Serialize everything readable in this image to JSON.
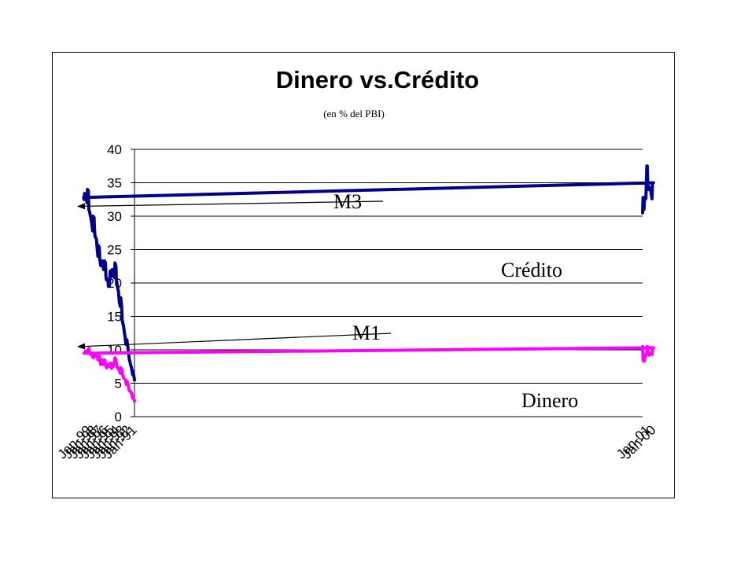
{
  "chart_data": {
    "type": "line",
    "title": "Dinero vs.Crédito",
    "subtitle": "(en % del PBI)",
    "xlabel": "",
    "ylabel": "",
    "ylim": [
      0,
      40
    ],
    "yticks": [
      0,
      5,
      10,
      15,
      20,
      25,
      30,
      35,
      40
    ],
    "xlim": [
      "Jan-91",
      "Dec-01"
    ],
    "xtick_labels": [
      "Jan-91",
      "Jan-92",
      "Jan-93",
      "Jan-94",
      "Jan-95",
      "Jan-96",
      "Jan-97",
      "Jan-98",
      "Jan-99",
      "Jan-00",
      "Jan-01"
    ],
    "grid": true,
    "legend": "none",
    "series": [
      {
        "name": "M3",
        "color": "#00008b",
        "points": [
          [
            "Jan-91",
            5.5
          ],
          [
            "Apr-91",
            6.8
          ],
          [
            "May-91",
            6.3
          ],
          [
            "Jul-91",
            7.2
          ],
          [
            "Oct-91",
            8.0
          ],
          [
            "Dec-91",
            8.6
          ],
          [
            "Mar-92",
            10.5
          ],
          [
            "May-92",
            11.5
          ],
          [
            "Jul-92",
            10.8
          ],
          [
            "Sep-92",
            12.0
          ],
          [
            "Dec-92",
            13.5
          ],
          [
            "Mar-93",
            14.5
          ],
          [
            "Apr-93",
            16.5
          ],
          [
            "Jun-93",
            17.8
          ],
          [
            "Jul-93",
            16.5
          ],
          [
            "Sep-93",
            17.2
          ],
          [
            "Nov-93",
            18.8
          ],
          [
            "Jan-94",
            19.5
          ],
          [
            "Mar-94",
            20.5
          ],
          [
            "Apr-94",
            22.5
          ],
          [
            "Jun-94",
            23.0
          ],
          [
            "Jul-94",
            20.8
          ],
          [
            "Sep-94",
            21.8
          ],
          [
            "Nov-94",
            21.6
          ],
          [
            "Dec-94",
            22.0
          ],
          [
            "Jan-95",
            21.0
          ],
          [
            "Apr-95",
            21.8
          ],
          [
            "May-95",
            20.5
          ],
          [
            "Jun-95",
            19.5
          ],
          [
            "Aug-95",
            19.5
          ],
          [
            "Sep-95",
            20.5
          ],
          [
            "Dec-95",
            20.5
          ],
          [
            "Jan-96",
            21.0
          ],
          [
            "Feb-96",
            23.0
          ],
          [
            "Apr-96",
            23.3
          ],
          [
            "Jun-96",
            22.0
          ],
          [
            "Jul-96",
            22.5
          ],
          [
            "Sep-96",
            23.3
          ],
          [
            "Dec-96",
            22.6
          ],
          [
            "Feb-97",
            23.5
          ],
          [
            "Mar-97",
            25.3
          ],
          [
            "May-97",
            25.6
          ],
          [
            "Jun-97",
            24.0
          ],
          [
            "Aug-97",
            25.5
          ],
          [
            "Sep-97",
            26.5
          ],
          [
            "Dec-97",
            27.0
          ],
          [
            "Jan-98",
            28.0
          ],
          [
            "Feb-98",
            29.8
          ],
          [
            "Apr-98",
            30.0
          ],
          [
            "May-98",
            27.8
          ],
          [
            "Jul-98",
            29.0
          ],
          [
            "Sep-98",
            29.8
          ],
          [
            "Nov-98",
            30.5
          ],
          [
            "Jan-99",
            31.0
          ],
          [
            "Feb-99",
            33.8
          ],
          [
            "Apr-99",
            34.0
          ],
          [
            "May-99",
            32.0
          ],
          [
            "Jul-99",
            32.6
          ],
          [
            "Aug-99",
            33.3
          ],
          [
            "Oct-99",
            33.4
          ],
          [
            "Nov-99",
            32.5
          ],
          [
            "Dec-99",
            32.8
          ],
          [
            "Jan-00",
            35.0
          ],
          [
            "Mar-00",
            35.0
          ],
          [
            "Apr-00",
            32.6
          ],
          [
            "Jun-00",
            33.5
          ],
          [
            "Aug-00",
            34.3
          ],
          [
            "Oct-00",
            34.3
          ],
          [
            "Dec-00",
            34.0
          ],
          [
            "Jan-01",
            35.0
          ],
          [
            "Feb-01",
            37.5
          ],
          [
            "Mar-01",
            37.5
          ],
          [
            "May-01",
            32.6
          ],
          [
            "Jul-01",
            32.8
          ],
          [
            "Aug-01",
            32.3
          ],
          [
            "Sep-01",
            31.0
          ],
          [
            "Oct-01",
            31.5
          ],
          [
            "Nov-01",
            32.8
          ],
          [
            "Dec-01",
            30.5
          ]
        ]
      },
      {
        "name": "M1",
        "color": "#ff00ff",
        "points": [
          [
            "Jan-91",
            2.3
          ],
          [
            "Apr-91",
            3.0
          ],
          [
            "May-91",
            2.8
          ],
          [
            "Jul-91",
            3.5
          ],
          [
            "Oct-91",
            3.8
          ],
          [
            "Dec-91",
            3.9
          ],
          [
            "Mar-92",
            5.0
          ],
          [
            "May-92",
            5.3
          ],
          [
            "Jun-92",
            4.8
          ],
          [
            "Aug-92",
            5.5
          ],
          [
            "Dec-92",
            5.8
          ],
          [
            "Mar-93",
            6.5
          ],
          [
            "Apr-93",
            7.2
          ],
          [
            "Jun-93",
            7.3
          ],
          [
            "Jul-93",
            6.5
          ],
          [
            "Sep-93",
            7.0
          ],
          [
            "Dec-93",
            7.2
          ],
          [
            "Feb-94",
            7.5
          ],
          [
            "Apr-94",
            8.5
          ],
          [
            "Jun-94",
            8.8
          ],
          [
            "Jul-94",
            7.8
          ],
          [
            "Sep-94",
            8.0
          ],
          [
            "Oct-94",
            7.5
          ],
          [
            "Dec-94",
            7.8
          ],
          [
            "Jan-95",
            7.2
          ],
          [
            "Mar-95",
            8.0
          ],
          [
            "Apr-95",
            8.0
          ],
          [
            "Jun-95",
            7.5
          ],
          [
            "Oct-95",
            7.8
          ],
          [
            "Dec-95",
            7.3
          ],
          [
            "Feb-96",
            7.8
          ],
          [
            "Apr-96",
            8.5
          ],
          [
            "Jun-96",
            7.8
          ],
          [
            "Sep-96",
            8.5
          ],
          [
            "Nov-96",
            7.8
          ],
          [
            "Dec-96",
            7.8
          ],
          [
            "Mar-97",
            9.0
          ],
          [
            "May-97",
            9.2
          ],
          [
            "Jun-97",
            8.5
          ],
          [
            "Jul-97",
            9.0
          ],
          [
            "Dec-97",
            9.0
          ],
          [
            "Jan-98",
            9.5
          ],
          [
            "Mar-98",
            9.5
          ],
          [
            "Apr-98",
            8.8
          ],
          [
            "Jun-98",
            9.3
          ],
          [
            "Sep-98",
            9.3
          ],
          [
            "Dec-98",
            9.5
          ],
          [
            "Jan-99",
            10.2
          ],
          [
            "Mar-99",
            10.0
          ],
          [
            "Apr-99",
            9.5
          ],
          [
            "Jun-99",
            9.8
          ],
          [
            "Aug-99",
            9.8
          ],
          [
            "Oct-99",
            9.5
          ],
          [
            "Nov-99",
            9.5
          ],
          [
            "Jan-00",
            10.3
          ],
          [
            "Mar-00",
            10.0
          ],
          [
            "Apr-00",
            9.3
          ],
          [
            "Jun-00",
            9.5
          ],
          [
            "Aug-00",
            9.5
          ],
          [
            "Oct-00",
            9.2
          ],
          [
            "Nov-00",
            9.3
          ],
          [
            "Jan-01",
            10.0
          ],
          [
            "Feb-01",
            10.5
          ],
          [
            "Mar-01",
            9.5
          ],
          [
            "May-01",
            9.2
          ],
          [
            "Jul-01",
            8.8
          ],
          [
            "Aug-01",
            8.3
          ],
          [
            "Oct-01",
            8.3
          ],
          [
            "Nov-01",
            8.5
          ],
          [
            "Dec-01",
            10.5
          ]
        ]
      }
    ],
    "annotations": [
      {
        "text": "M3",
        "arrow_to": [
          "Jan-99",
          31.0
        ]
      },
      {
        "text": "Crédito"
      },
      {
        "text": "M1",
        "arrow_to": [
          "Jan-99",
          10.0
        ]
      },
      {
        "text": "Dinero"
      }
    ]
  }
}
